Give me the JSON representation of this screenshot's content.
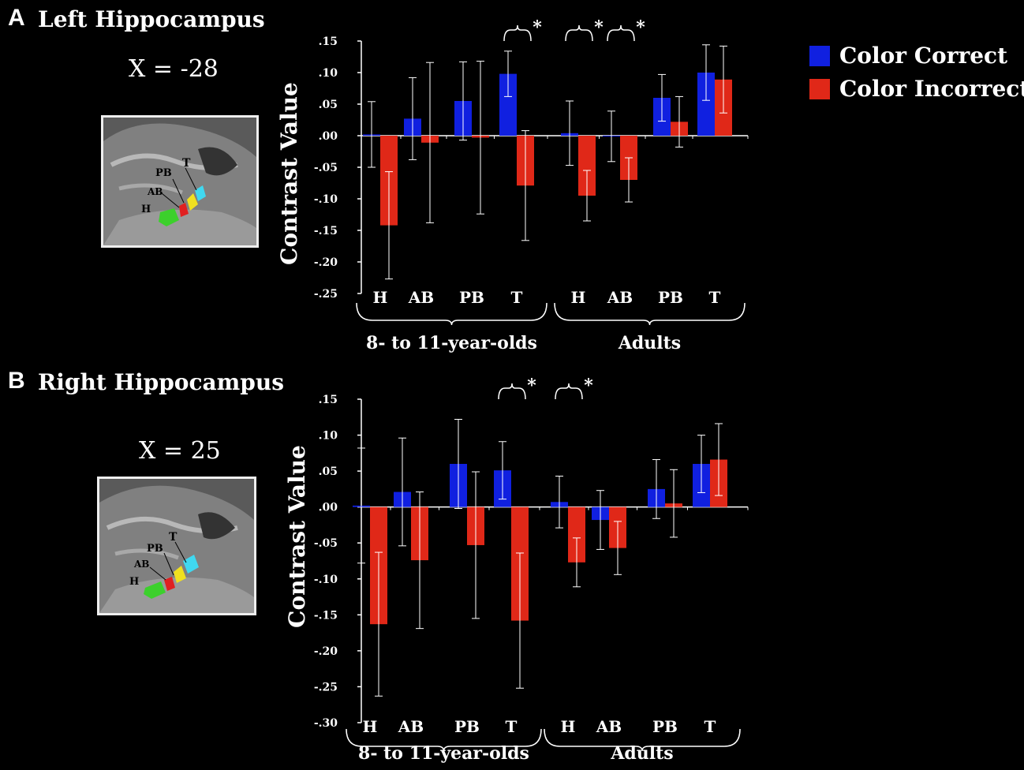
{
  "panels": [
    {
      "letter": "A",
      "title": "Left Hippocampus",
      "coord": "X = -28"
    },
    {
      "letter": "B",
      "title": "Right Hippocampus",
      "coord": "X = 25"
    }
  ],
  "brain_labels": [
    "PB",
    "T",
    "AB",
    "H"
  ],
  "legend": [
    {
      "label": "Color Correct",
      "color": "#1020e0"
    },
    {
      "label": "Color Incorrect",
      "color": "#e02818"
    }
  ],
  "chart_data": [
    {
      "type": "bar",
      "title": "Left Hippocampus",
      "ylabel": "Contrast Value",
      "ylim": [
        -0.25,
        0.15
      ],
      "yticks": [
        ".15",
        ".10",
        ".05",
        ".00",
        "-.05",
        "-.10",
        "-.15",
        "-.20",
        "-.25"
      ],
      "categories": [
        "H",
        "AB",
        "PB",
        "T",
        "H",
        "AB",
        "PB",
        "T"
      ],
      "groups": [
        "8- to 11-year-olds",
        "Adults"
      ],
      "series": [
        {
          "name": "Color Correct",
          "values": [
            0.002,
            0.027,
            0.055,
            0.098,
            0.004,
            -0.001,
            0.06,
            0.1
          ],
          "errors": [
            0.052,
            0.065,
            0.062,
            0.036,
            0.051,
            0.04,
            0.037,
            0.044
          ]
        },
        {
          "name": "Color Incorrect",
          "values": [
            -0.142,
            -0.011,
            -0.003,
            -0.079,
            -0.095,
            -0.07,
            0.022,
            0.089
          ],
          "errors": [
            0.085,
            0.127,
            0.121,
            0.087,
            0.04,
            0.035,
            0.04,
            0.053
          ]
        }
      ],
      "significance": [
        {
          "category_index": 3,
          "label": "*"
        },
        {
          "category_index": 4,
          "label": "*"
        },
        {
          "category_index": 5,
          "label": "*"
        }
      ]
    },
    {
      "type": "bar",
      "title": "Right Hippocampus",
      "ylabel": "Contrast Value",
      "ylim": [
        -0.3,
        0.15
      ],
      "yticks": [
        ".15",
        ".10",
        ".05",
        ".00",
        "-.05",
        "-.10",
        "-.15",
        "-.20",
        "-.25",
        "-.30"
      ],
      "categories": [
        "H",
        "AB",
        "PB",
        "T",
        "H",
        "AB",
        "PB",
        "T"
      ],
      "groups": [
        "8- to 11-year-olds",
        "Adults"
      ],
      "series": [
        {
          "name": "Color Correct",
          "values": [
            0.002,
            0.021,
            0.06,
            0.051,
            0.007,
            -0.018,
            0.025,
            0.06
          ],
          "errors": [
            0.08,
            0.075,
            0.062,
            0.04,
            0.036,
            0.041,
            0.041,
            0.04
          ]
        },
        {
          "name": "Color Incorrect",
          "values": [
            -0.163,
            -0.074,
            -0.053,
            -0.158,
            -0.077,
            -0.057,
            0.005,
            0.066
          ],
          "errors": [
            0.1,
            0.095,
            0.102,
            0.094,
            0.034,
            0.037,
            0.047,
            0.05
          ]
        }
      ],
      "significance": [
        {
          "category_index": 3,
          "label": "*"
        },
        {
          "category_index": 4,
          "label": "*"
        }
      ]
    }
  ]
}
